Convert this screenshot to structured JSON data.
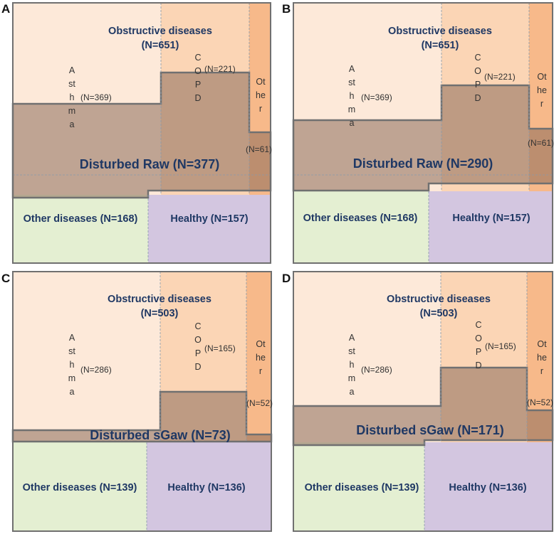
{
  "panels": [
    {
      "letter": "A",
      "obstructive": {
        "label": "Obstructive diseases",
        "n": "(N=651)"
      },
      "asthma": {
        "label": "Asthma",
        "n": "(N=369)"
      },
      "copd": {
        "label": "COPD",
        "n": "(N=221)"
      },
      "other": {
        "label": "Other",
        "n": "(N=61)"
      },
      "disturbed": {
        "label": "Disturbed Raw (N=377)"
      },
      "other_diseases": {
        "label": "Other diseases (N=168)"
      },
      "healthy": {
        "label": "Healthy (N=157)"
      }
    },
    {
      "letter": "B",
      "obstructive": {
        "label": "Obstructive diseases",
        "n": "(N=651)"
      },
      "asthma": {
        "label": "Asthma",
        "n": "(N=369)"
      },
      "copd": {
        "label": "COPD",
        "n": "(N=221)"
      },
      "other": {
        "label": "Other",
        "n": "(N=61)"
      },
      "disturbed": {
        "label": "Disturbed Raw (N=290)"
      },
      "other_diseases": {
        "label": "Other diseases (N=168)"
      },
      "healthy": {
        "label": "Healthy (N=157)"
      }
    },
    {
      "letter": "C",
      "obstructive": {
        "label": "Obstructive diseases",
        "n": "(N=503)"
      },
      "asthma": {
        "label": "Asthma",
        "n": "(N=286)"
      },
      "copd": {
        "label": "COPD",
        "n": "(N=165)"
      },
      "other": {
        "label": "Other",
        "n": "(N=52)"
      },
      "disturbed": {
        "label": "Disturbed sGaw (N=73)"
      },
      "other_diseases": {
        "label": "Other diseases (N=139)"
      },
      "healthy": {
        "label": "Healthy (N=136)"
      }
    },
    {
      "letter": "D",
      "obstructive": {
        "label": "Obstructive diseases",
        "n": "(N=503)"
      },
      "asthma": {
        "label": "Asthma",
        "n": "(N=286)"
      },
      "copd": {
        "label": "COPD",
        "n": "(N=165)"
      },
      "other": {
        "label": "Other",
        "n": "(N=52)"
      },
      "disturbed": {
        "label": "Disturbed sGaw (N=171)"
      },
      "other_diseases": {
        "label": "Other diseases (N=139)"
      },
      "healthy": {
        "label": "Healthy (N=136)"
      }
    }
  ],
  "colors": {
    "asthma": "#fde9d9",
    "copd": "#fbd5b5",
    "other": "#f7b98a",
    "other_diseases": "#e4efd2",
    "healthy": "#d3c6e0",
    "disturbed": "#8c6b5a",
    "outline": "#707070"
  }
}
